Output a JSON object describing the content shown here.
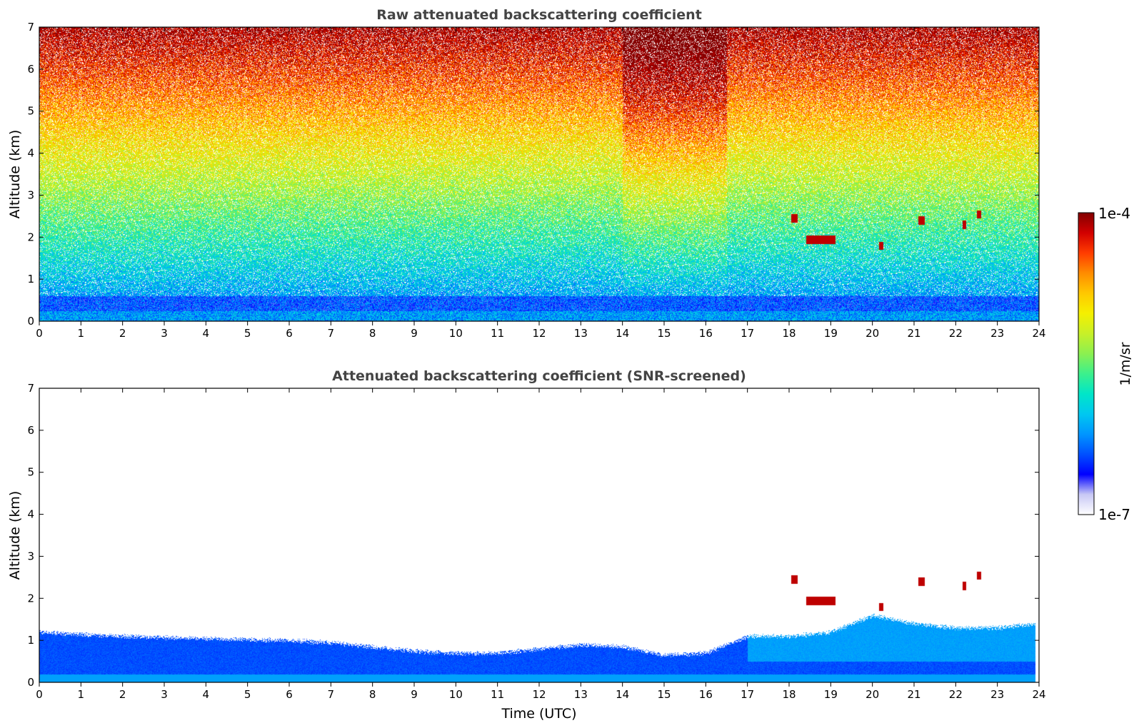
{
  "colors": {
    "colormap": [
      "#ffffff",
      "#c8c8f5",
      "#0000ff",
      "#0050ff",
      "#0096ff",
      "#00c8f0",
      "#00e6c8",
      "#3cf08c",
      "#8cf050",
      "#c8f028",
      "#f5f000",
      "#ffc800",
      "#ff8c00",
      "#ff3c00",
      "#d20000",
      "#820000"
    ]
  },
  "chart_data": [
    {
      "type": "heatmap",
      "title": "Raw attenuated backscattering coefficient",
      "xlabel": "",
      "ylabel": "Altitude (km)",
      "xlim": [
        0,
        24
      ],
      "ylim": [
        0,
        7
      ],
      "x_ticks": [
        "0",
        "1",
        "2",
        "3",
        "4",
        "5",
        "6",
        "7",
        "8",
        "9",
        "10",
        "11",
        "12",
        "13",
        "14",
        "15",
        "16",
        "17",
        "18",
        "19",
        "20",
        "21",
        "22",
        "23",
        "24"
      ],
      "y_ticks": [
        "0",
        "1",
        "2",
        "3",
        "4",
        "5",
        "6",
        "7"
      ],
      "features": {
        "surface_layer_top_km": 0.6,
        "enhanced_signal_window_utc": [
          14,
          16.5
        ],
        "clouds": [
          {
            "t_start": 18.4,
            "t_end": 19.1,
            "alt_km": 1.95
          },
          {
            "t_start": 18.05,
            "t_end": 18.2,
            "alt_km": 2.45
          },
          {
            "t_start": 21.1,
            "t_end": 21.25,
            "alt_km": 2.4
          },
          {
            "t_start": 22.15,
            "t_end": 22.25,
            "alt_km": 2.3
          },
          {
            "t_start": 22.5,
            "t_end": 22.6,
            "alt_km": 2.55
          },
          {
            "t_start": 20.15,
            "t_end": 20.25,
            "alt_km": 1.8
          }
        ]
      }
    },
    {
      "type": "heatmap",
      "title": "Attenuated backscattering coefficient (SNR-screened)",
      "xlabel": "Time (UTC)",
      "ylabel": "Altitude (km)",
      "xlim": [
        0,
        24
      ],
      "ylim": [
        0,
        7
      ],
      "x_ticks": [
        "0",
        "1",
        "2",
        "3",
        "4",
        "5",
        "6",
        "7",
        "8",
        "9",
        "10",
        "11",
        "12",
        "13",
        "14",
        "15",
        "16",
        "17",
        "18",
        "19",
        "20",
        "21",
        "22",
        "23",
        "24"
      ],
      "y_ticks": [
        "0",
        "1",
        "2",
        "3",
        "4",
        "5",
        "6",
        "7"
      ],
      "features": {
        "boundary_layer_top_km": [
          [
            0,
            1.2
          ],
          [
            2,
            1.1
          ],
          [
            4,
            1.05
          ],
          [
            6,
            1.0
          ],
          [
            7,
            0.95
          ],
          [
            8,
            0.85
          ],
          [
            9,
            0.75
          ],
          [
            10,
            0.7
          ],
          [
            11,
            0.7
          ],
          [
            12,
            0.8
          ],
          [
            13,
            0.9
          ],
          [
            14,
            0.85
          ],
          [
            15,
            0.65
          ],
          [
            16,
            0.7
          ],
          [
            17,
            1.1
          ],
          [
            18,
            1.1
          ],
          [
            19,
            1.2
          ],
          [
            20,
            1.6
          ],
          [
            21,
            1.4
          ],
          [
            22,
            1.3
          ],
          [
            23,
            1.3
          ],
          [
            23.9,
            1.4
          ]
        ]
      }
    }
  ],
  "colorbar": {
    "label": "1/m/sr",
    "max_label": "1e-4",
    "min_label": "1e-7",
    "scale": "log",
    "range": [
      1e-07,
      0.0001
    ]
  }
}
